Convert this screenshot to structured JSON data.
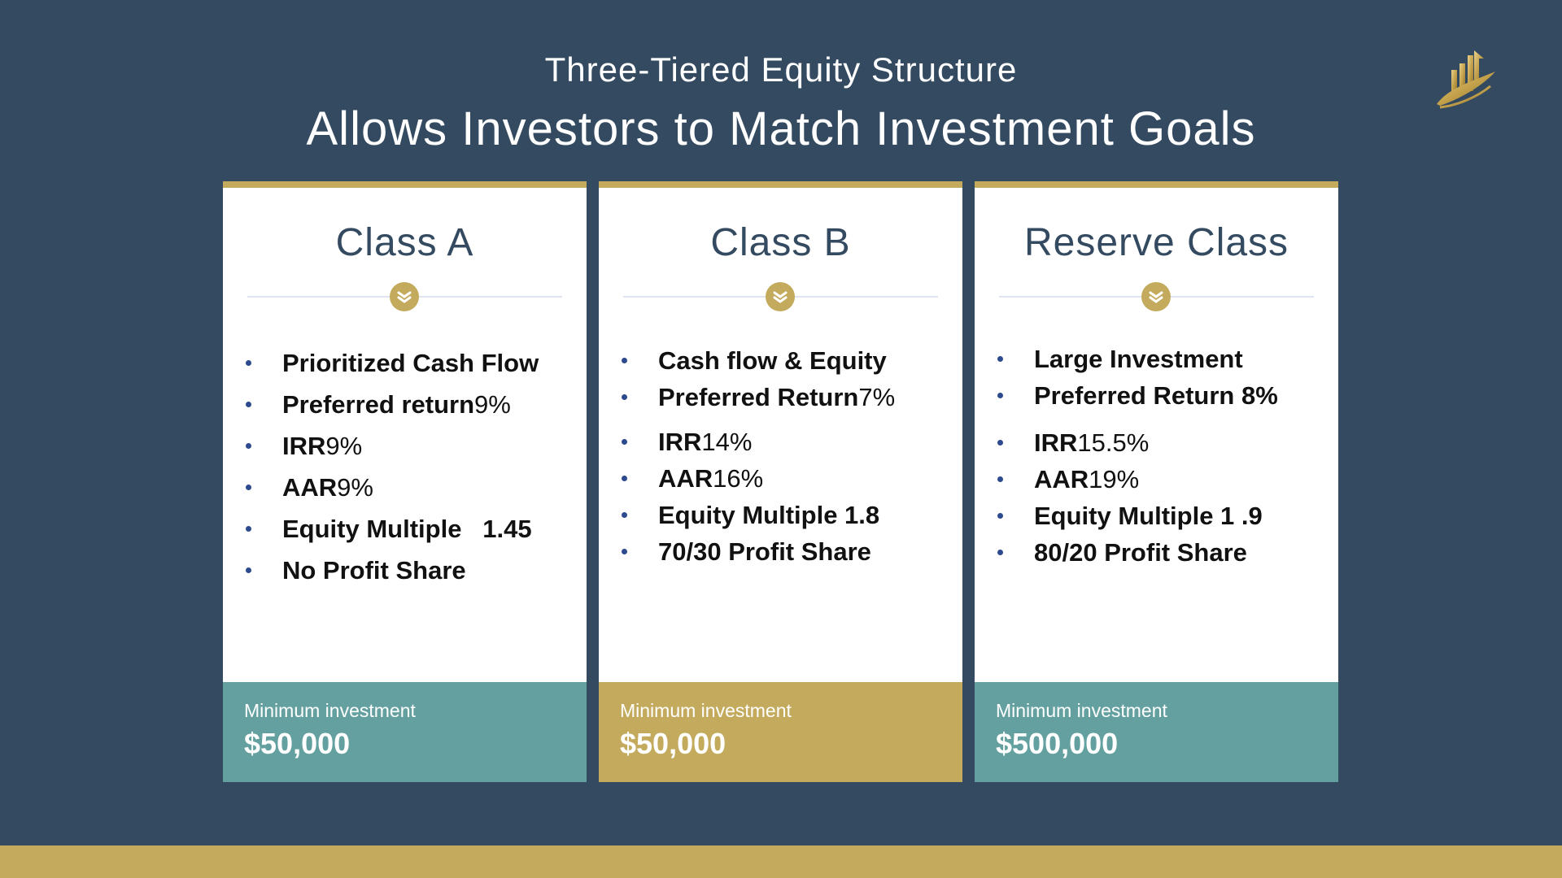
{
  "header": {
    "subtitle": "Three-Tiered Equity Structure",
    "title": "Allows Investors to Match Investment Goals",
    "logo_icon": "gold-building-chart-logo-icon"
  },
  "colors": {
    "background": "#344a60",
    "accent_gold": "#c3aa5d",
    "teal": "#64a0a0",
    "bullet": "#2e4a8e"
  },
  "cards": [
    {
      "title": "Class A",
      "icon": "chevron-down-circle-icon",
      "bullets": [
        {
          "bold": "Prioritized Cash Flow",
          "normal": ""
        },
        {
          "bold": "Preferred return",
          "normal": " 9%"
        },
        {
          "bold": "IRR",
          "normal": " 9%"
        },
        {
          "bold": "AAR",
          "normal": " 9%"
        },
        {
          "bold": "Equity Multiple   1.45",
          "normal": ""
        },
        {
          "bold": "No Profit Share",
          "normal": ""
        }
      ],
      "footer": {
        "label": "Minimum investment",
        "amount": "$50,000",
        "color": "teal"
      }
    },
    {
      "title": "Class B",
      "icon": "chevron-down-circle-icon",
      "bullets": [
        {
          "bold": "Cash flow & Equity",
          "normal": ""
        },
        {
          "bold": "Preferred Return",
          "normal": " 7%"
        },
        {
          "bold": "IRR",
          "normal": " 14%"
        },
        {
          "bold": "AAR",
          "normal": " 16%"
        },
        {
          "bold": "Equity Multiple 1.8",
          "normal": ""
        },
        {
          "bold": "70/30 Profit Share",
          "normal": ""
        }
      ],
      "footer": {
        "label": "Minimum investment",
        "amount": "$50,000",
        "color": "gold"
      }
    },
    {
      "title": "Reserve Class",
      "icon": "chevron-down-circle-icon",
      "bullets": [
        {
          "bold": "Large Investment",
          "normal": ""
        },
        {
          "bold": "Preferred Return 8%",
          "normal": ""
        },
        {
          "bold": "IRR",
          "normal": " 15.5%"
        },
        {
          "bold": "AAR",
          "normal": " 19%"
        },
        {
          "bold": "Equity Multiple 1 .9",
          "normal": ""
        },
        {
          "bold": "80/20 Profit Share",
          "normal": ""
        }
      ],
      "footer": {
        "label": "Minimum investment",
        "amount": "$500,000",
        "color": "teal"
      }
    }
  ]
}
